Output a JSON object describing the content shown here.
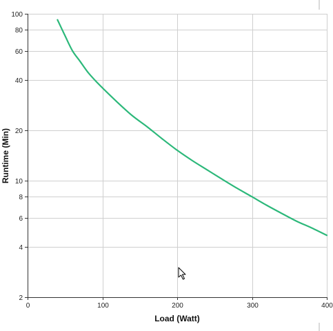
{
  "chart_data": {
    "type": "line",
    "title": "",
    "xlabel": "Load (Watt)",
    "ylabel": "Runtime (Min)",
    "xlim": [
      0,
      400
    ],
    "ylim": [
      2,
      100
    ],
    "y_scale": "log",
    "grid": true,
    "x_ticks": [
      0,
      100,
      200,
      300,
      400
    ],
    "x_tick_labels": [
      "0",
      "100",
      "200",
      "300",
      "400"
    ],
    "y_ticks": [
      2,
      4,
      6,
      8,
      10,
      20,
      40,
      60,
      80,
      100
    ],
    "y_tick_labels": [
      "2",
      "4",
      "6",
      "8",
      "10",
      "20",
      "40",
      "60",
      "80",
      "100"
    ],
    "series": [
      {
        "x": [
          40,
          50,
          60,
          70,
          80,
          90,
          100,
          120,
          140,
          160,
          180,
          200,
          220,
          240,
          260,
          280,
          300,
          320,
          340,
          360,
          380,
          400
        ],
        "y": [
          92,
          74,
          60,
          52,
          45,
          40,
          36,
          29.5,
          24.5,
          21,
          17.8,
          15.2,
          13.2,
          11.6,
          10.2,
          9.0,
          8.0,
          7.1,
          6.35,
          5.7,
          5.2,
          4.7
        ],
        "color": "#2cb87a"
      }
    ]
  }
}
